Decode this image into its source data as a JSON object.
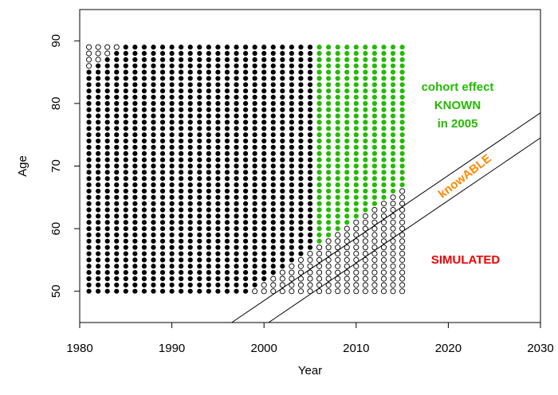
{
  "chart_data": {
    "type": "scatter",
    "title": "",
    "xlabel": "Year",
    "ylabel": "Age",
    "xlim": [
      1980,
      2030
    ],
    "ylim": [
      45,
      95
    ],
    "xticks": [
      1980,
      1990,
      2000,
      2010,
      2020,
      2030
    ],
    "yticks": [
      50,
      60,
      70,
      80,
      90
    ],
    "grid": false,
    "years": [
      1981,
      2015
    ],
    "ages": [
      50,
      89
    ],
    "point_classes": {
      "observed": {
        "color": "#000000",
        "years": [
          1981,
          2005
        ]
      },
      "known_future": {
        "color": "#22bb00",
        "years": [
          2006,
          2015
        ]
      },
      "knowable": {
        "color": "#ff8800",
        "years": [
          2006,
          2015
        ]
      },
      "simulated": {
        "color": "#ee0000",
        "years": [
          2006,
          2015
        ]
      },
      "missing": {
        "color": "#ffffff",
        "stroke": "#000000"
      }
    },
    "rules": {
      "old_missing": "age >= year - 1981 + 86 (empty circles, top-left corner)",
      "young_missing": "age <= year - 2002 + 53 (empty circles, bottom-right corner)",
      "future_known": "year - age < 1952 (green)",
      "future_knowable": "1952 <= year - age < 1957 (orange)",
      "future_simulated": "year - age >= 1957 (red)"
    },
    "lines": [
      {
        "name": "knowable-upper-boundary",
        "from": [
          1996.5,
          45
        ],
        "to": [
          2030,
          78.5
        ]
      },
      {
        "name": "knowable-lower-boundary",
        "from": [
          2000.5,
          45
        ],
        "to": [
          2030,
          74.5
        ]
      }
    ],
    "annotations": [
      {
        "text": "cohort effect",
        "color": "#22bb00"
      },
      {
        "text": "KNOWN",
        "color": "#22bb00"
      },
      {
        "text": "in 2005",
        "color": "#22bb00"
      },
      {
        "text": "knowABLE",
        "color": "#ff8800"
      },
      {
        "text": "SIMULATED",
        "color": "#ee0000"
      }
    ]
  }
}
